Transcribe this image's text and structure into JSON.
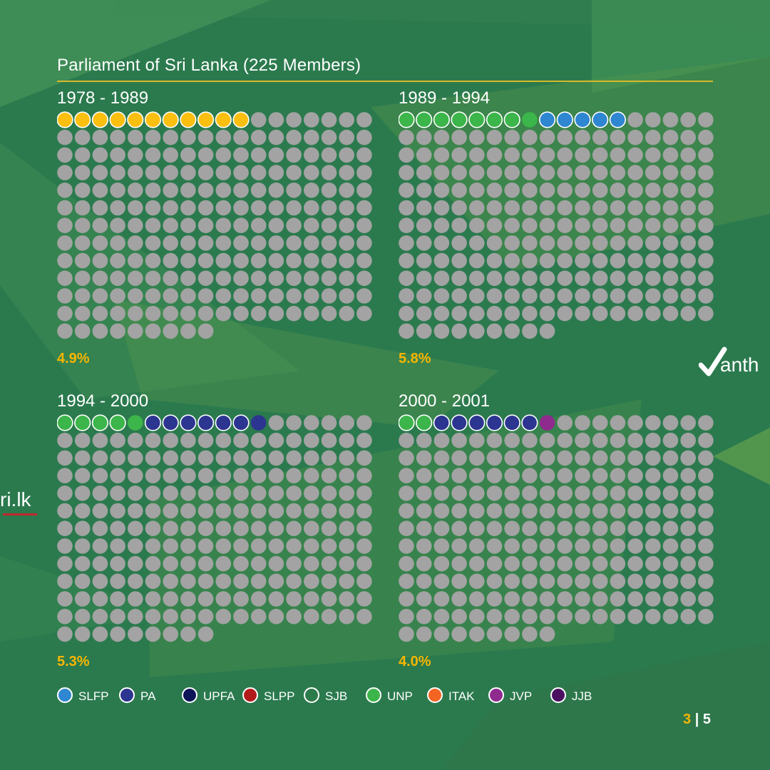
{
  "title": "Parliament of Sri Lanka (225 Members)",
  "colors": {
    "seat_default": "#a3a3a3",
    "accent": "#f7b500",
    "rule": "#d8b928",
    "party_yellow": "#fbbf10"
  },
  "legend": [
    {
      "label": "SLFP",
      "color": "#2f86d1"
    },
    {
      "label": "PA",
      "color": "#2c3590"
    },
    {
      "label": "UPFA",
      "color": "#0d1458"
    },
    {
      "label": "SLPP",
      "color": "#b31a1a"
    },
    {
      "label": "SJB",
      "color": "#2d7a4a"
    },
    {
      "label": "UNP",
      "color": "#3cb54a"
    },
    {
      "label": "ITAK",
      "color": "#f26522"
    },
    {
      "label": "JVP",
      "color": "#8f2b8e"
    },
    {
      "label": "JJB",
      "color": "#4b1160"
    }
  ],
  "chart_data": [
    {
      "type": "waffle",
      "period": "1978 - 1989",
      "total_seats": 225,
      "percentage": "4.9%",
      "highlighted": [
        {
          "count": 11,
          "color": "#fbbf10"
        }
      ]
    },
    {
      "type": "waffle",
      "period": "1989 - 1994",
      "total_seats": 225,
      "percentage": "5.8%",
      "highlighted": [
        {
          "count": 7,
          "color": "#3cb54a",
          "party": "UNP"
        },
        {
          "count": 1,
          "color": "#3cb54a",
          "party": "UNP",
          "outline": false
        },
        {
          "count": 5,
          "color": "#2f86d1",
          "party": "SLFP"
        }
      ]
    },
    {
      "type": "waffle",
      "period": "1994 - 2000",
      "total_seats": 225,
      "percentage": "5.3%",
      "highlighted": [
        {
          "count": 4,
          "color": "#3cb54a",
          "party": "UNP"
        },
        {
          "count": 1,
          "color": "#3cb54a",
          "party": "UNP",
          "outline": false
        },
        {
          "count": 6,
          "color": "#2c3590",
          "party": "PA"
        },
        {
          "count": 1,
          "color": "#2c3590",
          "party": "PA",
          "outline": false
        }
      ]
    },
    {
      "type": "waffle",
      "period": "2000 - 2001",
      "total_seats": 225,
      "percentage": "4.0%",
      "highlighted": [
        {
          "count": 2,
          "color": "#3cb54a",
          "party": "UNP"
        },
        {
          "count": 6,
          "color": "#2c3590",
          "party": "PA"
        },
        {
          "count": 1,
          "color": "#8f2b8e",
          "party": "JVP",
          "outline": false
        }
      ]
    }
  ],
  "logos": {
    "right": "anth",
    "left": "ri.lk"
  },
  "page": {
    "current": "3",
    "separator": "|",
    "total": "5"
  }
}
